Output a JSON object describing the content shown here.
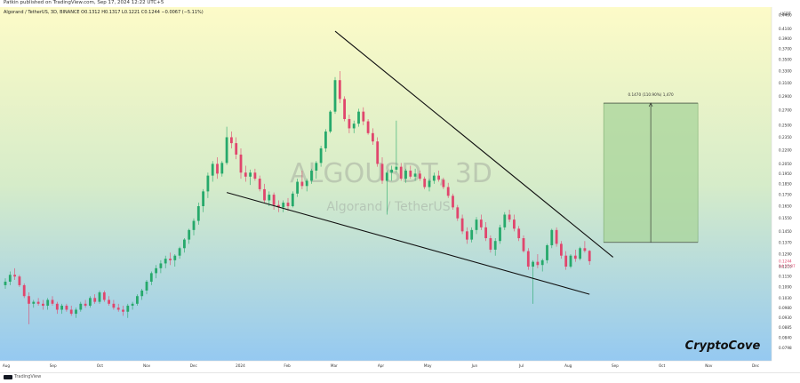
{
  "header": {
    "published": "Patkin published on TradingView.com, Sep 17, 2024 12:22 UTC+5",
    "legend": "Algorand / TetherUS, 3D, BINANCE  O0.1312  H0.1317  L0.1221  C0.1244  −0.0067 (−5.11%)"
  },
  "footer": {
    "logo_text": "TradingView"
  },
  "watermark": {
    "symbol": "ALGOUSDT, 3D",
    "name": "Algorand / TetherUS"
  },
  "brand": "CryptoCove",
  "colors": {
    "bg_top": "#fdfbc8",
    "bg_mid": "#d6ecc9",
    "bg_bottom": "#95c9f1",
    "up": "#26a96b",
    "down": "#e0466d",
    "box": "#a8d49a"
  },
  "chart_data": {
    "type": "candlestick",
    "symbol": "ALGOUSDT",
    "timeframe": "3D",
    "price_axis_unit": "USDT",
    "ylim": [
      0.076,
      0.45
    ],
    "y_ticks": [
      "0.4400",
      "0.4100",
      "0.3900",
      "0.3700",
      "0.3500",
      "0.3300",
      "0.3100",
      "0.2900",
      "0.2700",
      "0.2500",
      "0.2350",
      "0.2200",
      "0.2050",
      "0.1950",
      "0.1850",
      "0.1750",
      "0.1650",
      "0.1550",
      "0.1450",
      "0.1370",
      "0.1290",
      "0.1210",
      "0.1150",
      "0.1090",
      "0.1030",
      "0.0980",
      "0.0930",
      "0.0885",
      "0.0840",
      "0.0798"
    ],
    "x_labels": [
      "Aug",
      "Sep",
      "Oct",
      "Nov",
      "Dec",
      "2024",
      "Feb",
      "Mar",
      "Apr",
      "May",
      "Jun",
      "Jul",
      "Aug",
      "Sep",
      "Oct",
      "Nov",
      "Dec"
    ],
    "last_price": "0.1244",
    "countdown": "1d 17:07",
    "ohlc": [
      [
        0.11,
        0.114,
        0.108,
        0.112
      ],
      [
        0.112,
        0.118,
        0.11,
        0.116
      ],
      [
        0.116,
        0.12,
        0.113,
        0.115
      ],
      [
        0.115,
        0.116,
        0.109,
        0.11
      ],
      [
        0.11,
        0.111,
        0.103,
        0.104
      ],
      [
        0.104,
        0.106,
        0.09,
        0.1
      ],
      [
        0.1,
        0.102,
        0.098,
        0.101
      ],
      [
        0.101,
        0.103,
        0.099,
        0.1
      ],
      [
        0.1,
        0.102,
        0.097,
        0.099
      ],
      [
        0.099,
        0.103,
        0.097,
        0.102
      ],
      [
        0.102,
        0.104,
        0.099,
        0.1
      ],
      [
        0.1,
        0.101,
        0.095,
        0.097
      ],
      [
        0.097,
        0.1,
        0.095,
        0.099
      ],
      [
        0.099,
        0.1,
        0.096,
        0.097
      ],
      [
        0.097,
        0.099,
        0.094,
        0.095
      ],
      [
        0.095,
        0.098,
        0.093,
        0.097
      ],
      [
        0.097,
        0.101,
        0.096,
        0.1
      ],
      [
        0.1,
        0.102,
        0.098,
        0.099
      ],
      [
        0.099,
        0.104,
        0.098,
        0.103
      ],
      [
        0.103,
        0.105,
        0.1,
        0.101
      ],
      [
        0.101,
        0.107,
        0.1,
        0.106
      ],
      [
        0.106,
        0.107,
        0.101,
        0.102
      ],
      [
        0.102,
        0.104,
        0.099,
        0.1
      ],
      [
        0.1,
        0.102,
        0.097,
        0.098
      ],
      [
        0.098,
        0.1,
        0.096,
        0.097
      ],
      [
        0.097,
        0.099,
        0.094,
        0.096
      ],
      [
        0.096,
        0.1,
        0.093,
        0.099
      ],
      [
        0.099,
        0.101,
        0.097,
        0.1
      ],
      [
        0.1,
        0.105,
        0.099,
        0.104
      ],
      [
        0.104,
        0.108,
        0.102,
        0.107
      ],
      [
        0.107,
        0.113,
        0.105,
        0.112
      ],
      [
        0.112,
        0.118,
        0.11,
        0.117
      ],
      [
        0.117,
        0.122,
        0.114,
        0.12
      ],
      [
        0.12,
        0.125,
        0.117,
        0.123
      ],
      [
        0.123,
        0.128,
        0.12,
        0.126
      ],
      [
        0.126,
        0.13,
        0.122,
        0.125
      ],
      [
        0.125,
        0.129,
        0.121,
        0.128
      ],
      [
        0.128,
        0.134,
        0.126,
        0.133
      ],
      [
        0.133,
        0.14,
        0.13,
        0.139
      ],
      [
        0.139,
        0.147,
        0.136,
        0.146
      ],
      [
        0.146,
        0.155,
        0.142,
        0.153
      ],
      [
        0.153,
        0.168,
        0.15,
        0.165
      ],
      [
        0.165,
        0.18,
        0.16,
        0.178
      ],
      [
        0.178,
        0.196,
        0.172,
        0.193
      ],
      [
        0.193,
        0.208,
        0.187,
        0.205
      ],
      [
        0.205,
        0.212,
        0.19,
        0.195
      ],
      [
        0.195,
        0.208,
        0.192,
        0.206
      ],
      [
        0.206,
        0.248,
        0.204,
        0.235
      ],
      [
        0.235,
        0.242,
        0.222,
        0.228
      ],
      [
        0.228,
        0.235,
        0.21,
        0.215
      ],
      [
        0.215,
        0.222,
        0.19,
        0.196
      ],
      [
        0.196,
        0.203,
        0.187,
        0.192
      ],
      [
        0.192,
        0.199,
        0.184,
        0.196
      ],
      [
        0.196,
        0.2,
        0.188,
        0.19
      ],
      [
        0.19,
        0.193,
        0.178,
        0.18
      ],
      [
        0.18,
        0.185,
        0.168,
        0.17
      ],
      [
        0.17,
        0.178,
        0.165,
        0.175
      ],
      [
        0.175,
        0.177,
        0.162,
        0.166
      ],
      [
        0.166,
        0.17,
        0.16,
        0.164
      ],
      [
        0.164,
        0.17,
        0.16,
        0.168
      ],
      [
        0.168,
        0.172,
        0.161,
        0.165
      ],
      [
        0.165,
        0.178,
        0.164,
        0.176
      ],
      [
        0.176,
        0.19,
        0.173,
        0.187
      ],
      [
        0.187,
        0.198,
        0.18,
        0.183
      ],
      [
        0.183,
        0.19,
        0.178,
        0.188
      ],
      [
        0.188,
        0.2,
        0.185,
        0.198
      ],
      [
        0.198,
        0.208,
        0.19,
        0.206
      ],
      [
        0.206,
        0.225,
        0.202,
        0.222
      ],
      [
        0.222,
        0.245,
        0.218,
        0.242
      ],
      [
        0.242,
        0.27,
        0.24,
        0.268
      ],
      [
        0.268,
        0.32,
        0.265,
        0.315
      ],
      [
        0.315,
        0.33,
        0.28,
        0.286
      ],
      [
        0.286,
        0.29,
        0.255,
        0.258
      ],
      [
        0.258,
        0.264,
        0.24,
        0.246
      ],
      [
        0.246,
        0.256,
        0.24,
        0.252
      ],
      [
        0.252,
        0.272,
        0.248,
        0.268
      ],
      [
        0.268,
        0.274,
        0.25,
        0.255
      ],
      [
        0.255,
        0.258,
        0.238,
        0.24
      ],
      [
        0.24,
        0.246,
        0.226,
        0.23
      ],
      [
        0.23,
        0.235,
        0.202,
        0.205
      ],
      [
        0.205,
        0.212,
        0.185,
        0.188
      ],
      [
        0.188,
        0.198,
        0.158,
        0.196
      ],
      [
        0.196,
        0.203,
        0.188,
        0.199
      ],
      [
        0.199,
        0.256,
        0.196,
        0.202
      ],
      [
        0.202,
        0.206,
        0.188,
        0.19
      ],
      [
        0.19,
        0.2,
        0.186,
        0.198
      ],
      [
        0.198,
        0.203,
        0.19,
        0.192
      ],
      [
        0.192,
        0.2,
        0.188,
        0.195
      ],
      [
        0.195,
        0.198,
        0.188,
        0.19
      ],
      [
        0.19,
        0.192,
        0.18,
        0.182
      ],
      [
        0.182,
        0.19,
        0.178,
        0.188
      ],
      [
        0.188,
        0.196,
        0.185,
        0.193
      ],
      [
        0.193,
        0.198,
        0.187,
        0.189
      ],
      [
        0.189,
        0.191,
        0.18,
        0.182
      ],
      [
        0.182,
        0.186,
        0.172,
        0.174
      ],
      [
        0.174,
        0.176,
        0.162,
        0.164
      ],
      [
        0.164,
        0.166,
        0.153,
        0.155
      ],
      [
        0.155,
        0.158,
        0.143,
        0.145
      ],
      [
        0.145,
        0.148,
        0.136,
        0.139
      ],
      [
        0.139,
        0.148,
        0.137,
        0.146
      ],
      [
        0.146,
        0.156,
        0.143,
        0.154
      ],
      [
        0.154,
        0.158,
        0.146,
        0.148
      ],
      [
        0.148,
        0.152,
        0.138,
        0.14
      ],
      [
        0.14,
        0.142,
        0.13,
        0.132
      ],
      [
        0.132,
        0.14,
        0.128,
        0.138
      ],
      [
        0.138,
        0.15,
        0.136,
        0.148
      ],
      [
        0.148,
        0.16,
        0.146,
        0.158
      ],
      [
        0.158,
        0.162,
        0.152,
        0.154
      ],
      [
        0.154,
        0.158,
        0.145,
        0.147
      ],
      [
        0.147,
        0.149,
        0.138,
        0.14
      ],
      [
        0.14,
        0.142,
        0.13,
        0.131
      ],
      [
        0.131,
        0.133,
        0.119,
        0.121
      ],
      [
        0.121,
        0.125,
        0.1,
        0.124
      ],
      [
        0.124,
        0.129,
        0.12,
        0.122
      ],
      [
        0.122,
        0.126,
        0.118,
        0.125
      ],
      [
        0.125,
        0.136,
        0.123,
        0.135
      ],
      [
        0.135,
        0.147,
        0.133,
        0.146
      ],
      [
        0.146,
        0.148,
        0.134,
        0.136
      ],
      [
        0.136,
        0.138,
        0.126,
        0.128
      ],
      [
        0.128,
        0.131,
        0.119,
        0.121
      ],
      [
        0.121,
        0.129,
        0.12,
        0.128
      ],
      [
        0.128,
        0.132,
        0.124,
        0.126
      ],
      [
        0.126,
        0.134,
        0.125,
        0.133
      ],
      [
        0.133,
        0.138,
        0.13,
        0.1312
      ],
      [
        0.1312,
        0.1317,
        0.1221,
        0.1244
      ]
    ],
    "trendlines": [
      {
        "name": "upper-resistance",
        "from": [
          70,
          0.405
        ],
        "to": [
          129,
          0.127
        ]
      },
      {
        "name": "lower-support",
        "from": [
          47,
          0.177
        ],
        "to": [
          124,
          0.105
        ]
      }
    ],
    "target_box": {
      "from_index": 127,
      "to_index": 147,
      "bottom": 0.137,
      "top": 0.28,
      "label": "0.1470 (110.90%) 1,470"
    }
  }
}
